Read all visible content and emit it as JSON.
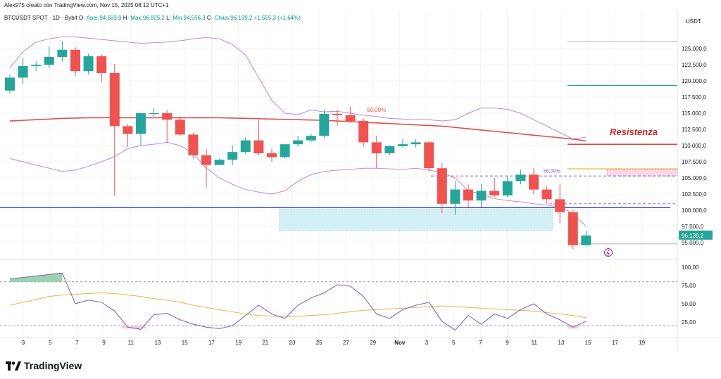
{
  "header": {
    "credit": "Alex975 creato con TradingView.com, Nov 15, 2025 08:12 UTC+1",
    "symbol": "BTCUSDT SPOT · 1D · Bybit",
    "o_label": "O",
    "o_val": "- Aper.94.583,9",
    "h_label": "H",
    "h_val": "- Max.96.825,2",
    "l_label": "L",
    "l_val": "- Min.94.556,3",
    "c_label": "C",
    "c_val": "- Chius.96.139,2",
    "change": "+1.555,3 (+1,64%)"
  },
  "footer": {
    "brand": "TradingView"
  },
  "chart_data": {
    "type": "candlestick",
    "price_axis_title": "USDT",
    "colors": {
      "up": "#26a69a",
      "down": "#ef5350",
      "bb": "#c586d8",
      "ma": "#e0504d",
      "support": "#2e4bd1",
      "zone": "#cdeef6",
      "green_line": "#26a69a",
      "red_line": "#d32f2f",
      "yellow_line": "#f2c14e",
      "rsi": "#7e57c2",
      "rsi_ma": "#f5b041"
    },
    "price_range": [
      92500,
      127500
    ],
    "price_ticks": [
      "125.000,0",
      "122.500,0",
      "120.000,0",
      "117.500,0",
      "115.000,0",
      "112.500,0",
      "110.000,0",
      "107.500,0",
      "105.000,0",
      "102.500,0",
      "100.000,0",
      "97.500,0",
      "95.000,0"
    ],
    "last_price_label": "96.139,2",
    "x_labels": [
      "3",
      "5",
      "7",
      "9",
      "11",
      "13",
      "15",
      "17",
      "19",
      "21",
      "23",
      "25",
      "27",
      "29",
      "Nov",
      "3",
      "5",
      "7",
      "9",
      "11",
      "13",
      "15",
      "17",
      "19"
    ],
    "candles": [
      {
        "o": 118500,
        "h": 121000,
        "l": 118000,
        "c": 120500
      },
      {
        "o": 120500,
        "h": 123500,
        "l": 119500,
        "c": 122300
      },
      {
        "o": 122300,
        "h": 123000,
        "l": 121500,
        "c": 122500
      },
      {
        "o": 122500,
        "h": 125300,
        "l": 122000,
        "c": 123700
      },
      {
        "o": 123700,
        "h": 126200,
        "l": 123000,
        "c": 124800
      },
      {
        "o": 124800,
        "h": 125200,
        "l": 120700,
        "c": 121500
      },
      {
        "o": 121500,
        "h": 124200,
        "l": 121000,
        "c": 123800
      },
      {
        "o": 123800,
        "h": 124100,
        "l": 119800,
        "c": 121200
      },
      {
        "o": 121200,
        "h": 122600,
        "l": 102200,
        "c": 113000
      },
      {
        "o": 113000,
        "h": 113300,
        "l": 109800,
        "c": 111800
      },
      {
        "o": 111800,
        "h": 115000,
        "l": 110000,
        "c": 115000
      },
      {
        "o": 115000,
        "h": 115800,
        "l": 114500,
        "c": 115000
      },
      {
        "o": 115000,
        "h": 115500,
        "l": 110500,
        "c": 114000
      },
      {
        "o": 114000,
        "h": 114500,
        "l": 111500,
        "c": 111700
      },
      {
        "o": 111700,
        "h": 112000,
        "l": 108000,
        "c": 108500
      },
      {
        "o": 108500,
        "h": 109500,
        "l": 103500,
        "c": 107000
      },
      {
        "o": 107000,
        "h": 108000,
        "l": 107000,
        "c": 107800
      },
      {
        "o": 107800,
        "h": 110000,
        "l": 107000,
        "c": 109000
      },
      {
        "o": 109000,
        "h": 111300,
        "l": 108700,
        "c": 110800
      },
      {
        "o": 110800,
        "h": 114000,
        "l": 108500,
        "c": 108800
      },
      {
        "o": 108800,
        "h": 109500,
        "l": 107500,
        "c": 108200
      },
      {
        "o": 108200,
        "h": 110300,
        "l": 108000,
        "c": 110200
      },
      {
        "o": 110200,
        "h": 111500,
        "l": 109800,
        "c": 110800
      },
      {
        "o": 110800,
        "h": 111800,
        "l": 110500,
        "c": 111500
      },
      {
        "o": 111500,
        "h": 115600,
        "l": 111200,
        "c": 114900
      },
      {
        "o": 114900,
        "h": 115500,
        "l": 113000,
        "c": 114700
      },
      {
        "o": 114700,
        "h": 116000,
        "l": 113500,
        "c": 113800
      },
      {
        "o": 113800,
        "h": 114200,
        "l": 109800,
        "c": 110500
      },
      {
        "o": 110500,
        "h": 111500,
        "l": 106500,
        "c": 108800
      },
      {
        "o": 108800,
        "h": 110000,
        "l": 108500,
        "c": 109900
      },
      {
        "o": 109900,
        "h": 111000,
        "l": 109700,
        "c": 110200
      },
      {
        "o": 110200,
        "h": 111000,
        "l": 109700,
        "c": 110500
      },
      {
        "o": 110500,
        "h": 110700,
        "l": 106000,
        "c": 106500
      },
      {
        "o": 106500,
        "h": 107300,
        "l": 99500,
        "c": 101000
      },
      {
        "o": 101000,
        "h": 104500,
        "l": 99300,
        "c": 103200
      },
      {
        "o": 103200,
        "h": 104000,
        "l": 100400,
        "c": 101500
      },
      {
        "o": 101500,
        "h": 104000,
        "l": 100500,
        "c": 103000
      },
      {
        "o": 103000,
        "h": 105000,
        "l": 102000,
        "c": 102300
      },
      {
        "o": 102300,
        "h": 105300,
        "l": 102000,
        "c": 104500
      },
      {
        "o": 104500,
        "h": 106300,
        "l": 104000,
        "c": 105500
      },
      {
        "o": 105500,
        "h": 106500,
        "l": 102500,
        "c": 103200
      },
      {
        "o": 103200,
        "h": 103800,
        "l": 101000,
        "c": 101700
      },
      {
        "o": 101700,
        "h": 104000,
        "l": 98000,
        "c": 99700
      },
      {
        "o": 99700,
        "h": 100100,
        "l": 94000,
        "c": 94600
      },
      {
        "o": 94600,
        "h": 96800,
        "l": 94500,
        "c": 96100
      }
    ],
    "bb_upper": [
      122000,
      124500,
      126000,
      126500,
      126800,
      126800,
      126600,
      126400,
      126200,
      126000,
      125800,
      125900,
      126000,
      126200,
      126500,
      126700,
      126500,
      125600,
      124000,
      120500,
      117000,
      115000,
      114800,
      115500,
      115200,
      115300,
      115000,
      114700,
      114500,
      114200,
      114100,
      114000,
      114000,
      113800,
      114000,
      115000,
      115800,
      115800,
      115600,
      115000,
      114000,
      113000,
      112000,
      111000,
      111300
    ],
    "bb_lower": [
      108000,
      107500,
      107000,
      106500,
      106000,
      106200,
      106800,
      107500,
      108300,
      109500,
      110000,
      110200,
      110500,
      110000,
      108800,
      106500,
      105000,
      104000,
      103200,
      102800,
      102500,
      103000,
      104500,
      105500,
      106000,
      106200,
      106300,
      106500,
      106500,
      106400,
      106300,
      106500,
      106200,
      105800,
      105000,
      103000,
      102500,
      101800,
      101500,
      101300,
      101000,
      100800,
      100500,
      99500,
      97500
    ],
    "ma": [
      113800,
      113900,
      114000,
      114100,
      114200,
      114250,
      114300,
      114300,
      114300,
      114300,
      114300,
      114300,
      114300,
      114300,
      114300,
      114300,
      114300,
      114250,
      114200,
      114150,
      114100,
      114050,
      114000,
      113950,
      113900,
      113800,
      113700,
      113600,
      113500,
      113400,
      113300,
      113200,
      113100,
      113000,
      112800,
      112600,
      112400,
      112200,
      112000,
      111800,
      111600,
      111400,
      111200,
      111000,
      110700
    ],
    "levels": {
      "resistance": 110200,
      "support": 100400,
      "green": 119300,
      "yellow": 106400,
      "dashed_a": 105300,
      "dashed_b": 101000,
      "grey_top": 126100,
      "grey_low": 94800
    },
    "zone": {
      "from_candle": 21,
      "to_candle": 41,
      "top": 100200,
      "bottom": 96800
    },
    "fib_label": "50,00%",
    "fib_label_2": "50,00%",
    "annotation": "Resistenza",
    "rsi": {
      "ticks": [
        "100,00",
        "75,00",
        "50,00",
        "25,00"
      ],
      "levels": [
        80,
        20
      ],
      "values": [
        84,
        86,
        88,
        90,
        92,
        50,
        55,
        52,
        40,
        18,
        15,
        35,
        37,
        28,
        22,
        18,
        16,
        20,
        34,
        48,
        36,
        30,
        48,
        58,
        65,
        76,
        74,
        60,
        36,
        30,
        42,
        48,
        52,
        26,
        14,
        34,
        22,
        36,
        30,
        42,
        50,
        36,
        28,
        18,
        26
      ],
      "ma": [
        48,
        52,
        56,
        60,
        62,
        63,
        64,
        65,
        64,
        62,
        60,
        57,
        55,
        52,
        48,
        45,
        42,
        39,
        36,
        34,
        33,
        32,
        33,
        34,
        35,
        37,
        39,
        41,
        42,
        43,
        44,
        45,
        46,
        47,
        46,
        45,
        44,
        43,
        42,
        41,
        40,
        38,
        36,
        34,
        31
      ]
    }
  }
}
